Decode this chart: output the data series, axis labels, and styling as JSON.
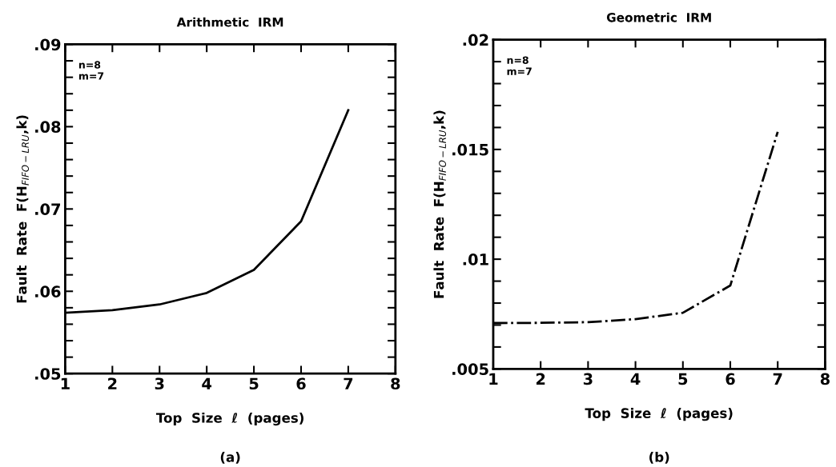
{
  "chart_data": [
    {
      "type": "line",
      "title": "Arithmetic  IRM",
      "xlabel": "Top  Size  ℓ  (pages)",
      "ylabel": "Fault  Rate  F(H$_{FIFO−LRU}$,k)",
      "annotations": [
        "n=8\nm=7",
        "(a)"
      ],
      "x": [
        1,
        2,
        3,
        4,
        5,
        6,
        7
      ],
      "series": [
        {
          "color": "#000000",
          "values": [
            0.0574,
            0.0577,
            0.0584,
            0.0598,
            0.0626,
            0.0685,
            0.082
          ],
          "line_style": "solid"
        }
      ],
      "xlim": [
        1,
        8
      ],
      "xticks": [
        1,
        2,
        3,
        4,
        5,
        6,
        7,
        8
      ],
      "ylim": [
        0.05,
        0.09
      ],
      "yticks": [
        {
          "value": 0.05,
          "label": ".05"
        },
        {
          "value": 0.052,
          "label": null
        },
        {
          "value": 0.054,
          "label": null
        },
        {
          "value": 0.056,
          "label": null
        },
        {
          "value": 0.058,
          "label": null
        },
        {
          "value": 0.06,
          "label": ".06"
        },
        {
          "value": 0.062,
          "label": null
        },
        {
          "value": 0.064,
          "label": null
        },
        {
          "value": 0.066,
          "label": null
        },
        {
          "value": 0.068,
          "label": null
        },
        {
          "value": 0.07,
          "label": ".07"
        },
        {
          "value": 0.072,
          "label": null
        },
        {
          "value": 0.074,
          "label": null
        },
        {
          "value": 0.076,
          "label": null
        },
        {
          "value": 0.078,
          "label": null
        },
        {
          "value": 0.08,
          "label": ".08"
        },
        {
          "value": 0.082,
          "label": null
        },
        {
          "value": 0.084,
          "label": null
        },
        {
          "value": 0.086,
          "label": null
        },
        {
          "value": 0.088,
          "label": null
        },
        {
          "value": 0.09,
          "label": ".09"
        }
      ],
      "grid": false,
      "legend": false,
      "marker": "none"
    },
    {
      "type": "line",
      "title": "Geometric  IRM",
      "xlabel": "Top  Size  ℓ  (pages)",
      "ylabel": "Fault  Rate  F(H$_{FIFO−LRU}$,k)",
      "annotations": [
        "n=8\nm=7",
        "(b)"
      ],
      "x": [
        1,
        2,
        3,
        4,
        5,
        6,
        7
      ],
      "series": [
        {
          "color": "#000000",
          "values": [
            0.00709,
            0.0071,
            0.00713,
            0.00727,
            0.00756,
            0.0088,
            0.0158
          ],
          "line_style": "dashdot"
        }
      ],
      "xlim": [
        1,
        8
      ],
      "xticks": [
        1,
        2,
        3,
        4,
        5,
        6,
        7,
        8
      ],
      "ylim": [
        0.005,
        0.02
      ],
      "yticks": [
        {
          "value": 0.005,
          "label": ".005"
        },
        {
          "value": 0.006,
          "label": null
        },
        {
          "value": 0.007,
          "label": null
        },
        {
          "value": 0.008,
          "label": null
        },
        {
          "value": 0.009,
          "label": null
        },
        {
          "value": 0.01,
          "label": ".01"
        },
        {
          "value": 0.011,
          "label": null
        },
        {
          "value": 0.012,
          "label": null
        },
        {
          "value": 0.013,
          "label": null
        },
        {
          "value": 0.014,
          "label": null
        },
        {
          "value": 0.015,
          "label": ".015"
        },
        {
          "value": 0.016,
          "label": null
        },
        {
          "value": 0.017,
          "label": null
        },
        {
          "value": 0.018,
          "label": null
        },
        {
          "value": 0.019,
          "label": null
        },
        {
          "value": 0.02,
          "label": ".02"
        }
      ],
      "grid": false,
      "legend": false,
      "marker": "none"
    }
  ]
}
